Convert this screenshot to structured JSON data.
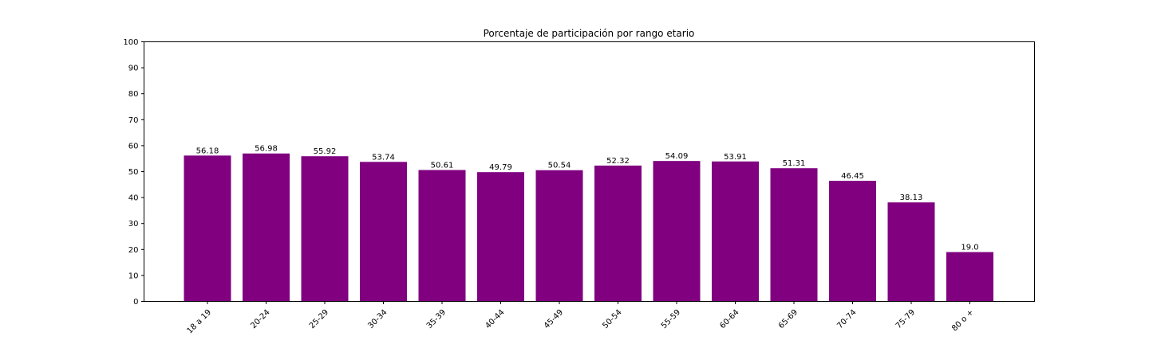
{
  "chart_data": {
    "type": "bar",
    "title": "Porcentaje de participación por rango etario",
    "xlabel": "",
    "ylabel": "",
    "categories": [
      "18 a 19",
      "20-24",
      "25-29",
      "30-34",
      "35-39",
      "40-44",
      "45-49",
      "50-54",
      "55-59",
      "60-64",
      "65-69",
      "70-74",
      "75-79",
      "80 o +"
    ],
    "values": [
      56.18,
      56.98,
      55.92,
      53.74,
      50.61,
      49.79,
      50.54,
      52.32,
      54.09,
      53.91,
      51.31,
      46.45,
      38.13,
      19.0
    ],
    "value_labels": [
      "56.18",
      "56.98",
      "55.92",
      "53.74",
      "50.61",
      "49.79",
      "50.54",
      "52.32",
      "54.09",
      "53.91",
      "51.31",
      "46.45",
      "38.13",
      "19.0"
    ],
    "ylim": [
      0,
      100
    ],
    "yticks": [
      0,
      10,
      20,
      30,
      40,
      50,
      60,
      70,
      80,
      90,
      100
    ],
    "bar_color": "#800080",
    "grid": false,
    "legend": false
  }
}
